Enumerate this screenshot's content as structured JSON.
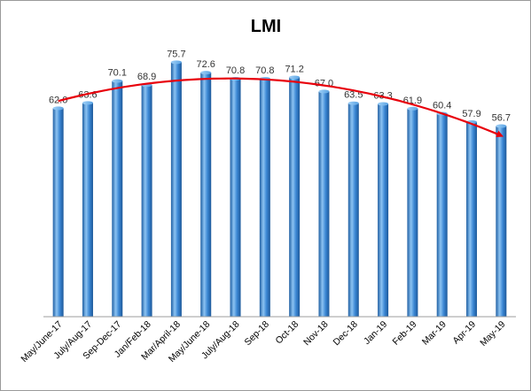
{
  "chart_data": {
    "type": "bar",
    "title": "LMI",
    "xlabel": "",
    "ylabel": "",
    "ylim": [
      0,
      80
    ],
    "grid": false,
    "legend": "none",
    "categories": [
      "May/June-17",
      "July/Aug-17",
      "Sep-Dec-17",
      "Jan/Feb-18",
      "Mar/April-18",
      "May/June-18",
      "July/Aug-18",
      "Sep-18",
      "Oct-18",
      "Nov-18",
      "Dec-18",
      "Jan-19",
      "Feb-19",
      "Mar-19",
      "Apr-19",
      "May-19"
    ],
    "values": [
      62.0,
      63.6,
      70.1,
      68.9,
      75.7,
      72.6,
      70.8,
      70.8,
      71.2,
      67.0,
      63.5,
      63.3,
      61.9,
      60.4,
      57.9,
      56.7
    ],
    "data_labels": [
      "62.0",
      "63.6",
      "70.1",
      "68.9",
      "75.7",
      "72.6",
      "70.8",
      "70.8",
      "71.2",
      "67.0",
      "63.5",
      "63.3",
      "61.9",
      "60.4",
      "57.9",
      "56.7"
    ],
    "trendline": {
      "type": "polynomial",
      "color": "#e8000b",
      "arrow_end": true
    },
    "colors": {
      "bar_main": "#3b87d4",
      "bar_light": "#8cc3f2",
      "bar_dark": "#1f5fa3",
      "axis": "#9e9e9e",
      "trend": "#e8000b"
    }
  }
}
